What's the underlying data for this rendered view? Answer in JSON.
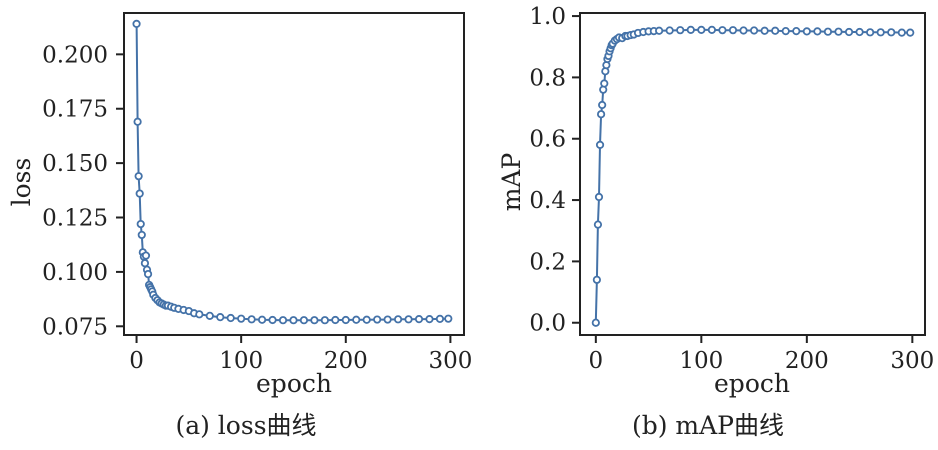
{
  "colors": {
    "series": "#4472a8",
    "axis": "#222222",
    "marker_fill": "#ffffff"
  },
  "chart_data": [
    {
      "type": "line",
      "caption": "(a) loss曲线",
      "title": "",
      "xlabel": "epoch",
      "ylabel": "loss",
      "xlim": [
        -12,
        313
      ],
      "ylim": [
        0.071,
        0.219
      ],
      "xticks": [
        0,
        100,
        200,
        300
      ],
      "yticks": [
        0.075,
        0.1,
        0.125,
        0.15,
        0.175,
        0.2
      ],
      "ytick_labels": [
        "0.075",
        "0.100",
        "0.125",
        "0.150",
        "0.175",
        "0.200"
      ],
      "grid": false,
      "legend": "none",
      "series": [
        {
          "x": [
            0,
            1,
            2,
            3,
            4,
            5,
            6,
            7,
            8,
            9,
            10,
            11,
            12,
            13,
            14,
            15,
            16,
            18,
            20,
            22,
            24,
            26,
            28,
            30,
            33,
            36,
            40,
            45,
            50,
            55,
            60,
            70,
            80,
            90,
            100,
            110,
            120,
            130,
            140,
            150,
            160,
            170,
            180,
            190,
            200,
            210,
            220,
            230,
            240,
            250,
            260,
            270,
            280,
            290,
            298
          ],
          "y": [
            0.214,
            0.169,
            0.144,
            0.136,
            0.122,
            0.117,
            0.109,
            0.107,
            0.104,
            0.1075,
            0.101,
            0.099,
            0.094,
            0.093,
            0.092,
            0.091,
            0.0895,
            0.088,
            0.087,
            0.086,
            0.0855,
            0.085,
            0.0845,
            0.0845,
            0.084,
            0.0835,
            0.083,
            0.0825,
            0.082,
            0.081,
            0.0805,
            0.0798,
            0.0792,
            0.0788,
            0.0785,
            0.0782,
            0.078,
            0.0779,
            0.0778,
            0.0778,
            0.0778,
            0.0778,
            0.0778,
            0.0779,
            0.0779,
            0.078,
            0.078,
            0.0781,
            0.0781,
            0.0782,
            0.0782,
            0.0783,
            0.0783,
            0.0784,
            0.0785
          ]
        }
      ]
    },
    {
      "type": "line",
      "caption": "(b) mAP曲线",
      "title": "",
      "xlabel": "epoch",
      "ylabel": "mAP",
      "xlim": [
        -15,
        312
      ],
      "ylim": [
        -0.04,
        1.01
      ],
      "xticks": [
        0,
        100,
        200,
        300
      ],
      "yticks": [
        0.0,
        0.2,
        0.4,
        0.6,
        0.8,
        1.0
      ],
      "ytick_labels": [
        "0.0",
        "0.2",
        "0.4",
        "0.6",
        "0.8",
        "1.0"
      ],
      "grid": false,
      "legend": "none",
      "series": [
        {
          "x": [
            0,
            1,
            2,
            3,
            4,
            5,
            6,
            7,
            8,
            9,
            10,
            11,
            12,
            13,
            14,
            15,
            16,
            18,
            20,
            22,
            25,
            28,
            30,
            33,
            36,
            40,
            45,
            50,
            55,
            60,
            70,
            80,
            90,
            100,
            110,
            120,
            130,
            140,
            150,
            160,
            170,
            180,
            190,
            200,
            210,
            220,
            230,
            240,
            250,
            260,
            270,
            280,
            290,
            298
          ],
          "y": [
            0.0,
            0.14,
            0.32,
            0.41,
            0.58,
            0.68,
            0.71,
            0.76,
            0.78,
            0.82,
            0.84,
            0.86,
            0.87,
            0.885,
            0.895,
            0.905,
            0.91,
            0.92,
            0.925,
            0.93,
            0.928,
            0.935,
            0.935,
            0.938,
            0.94,
            0.945,
            0.948,
            0.95,
            0.951,
            0.952,
            0.953,
            0.954,
            0.955,
            0.955,
            0.955,
            0.954,
            0.954,
            0.953,
            0.953,
            0.952,
            0.952,
            0.951,
            0.951,
            0.95,
            0.95,
            0.949,
            0.949,
            0.948,
            0.948,
            0.947,
            0.947,
            0.947,
            0.946,
            0.946
          ]
        }
      ]
    }
  ]
}
